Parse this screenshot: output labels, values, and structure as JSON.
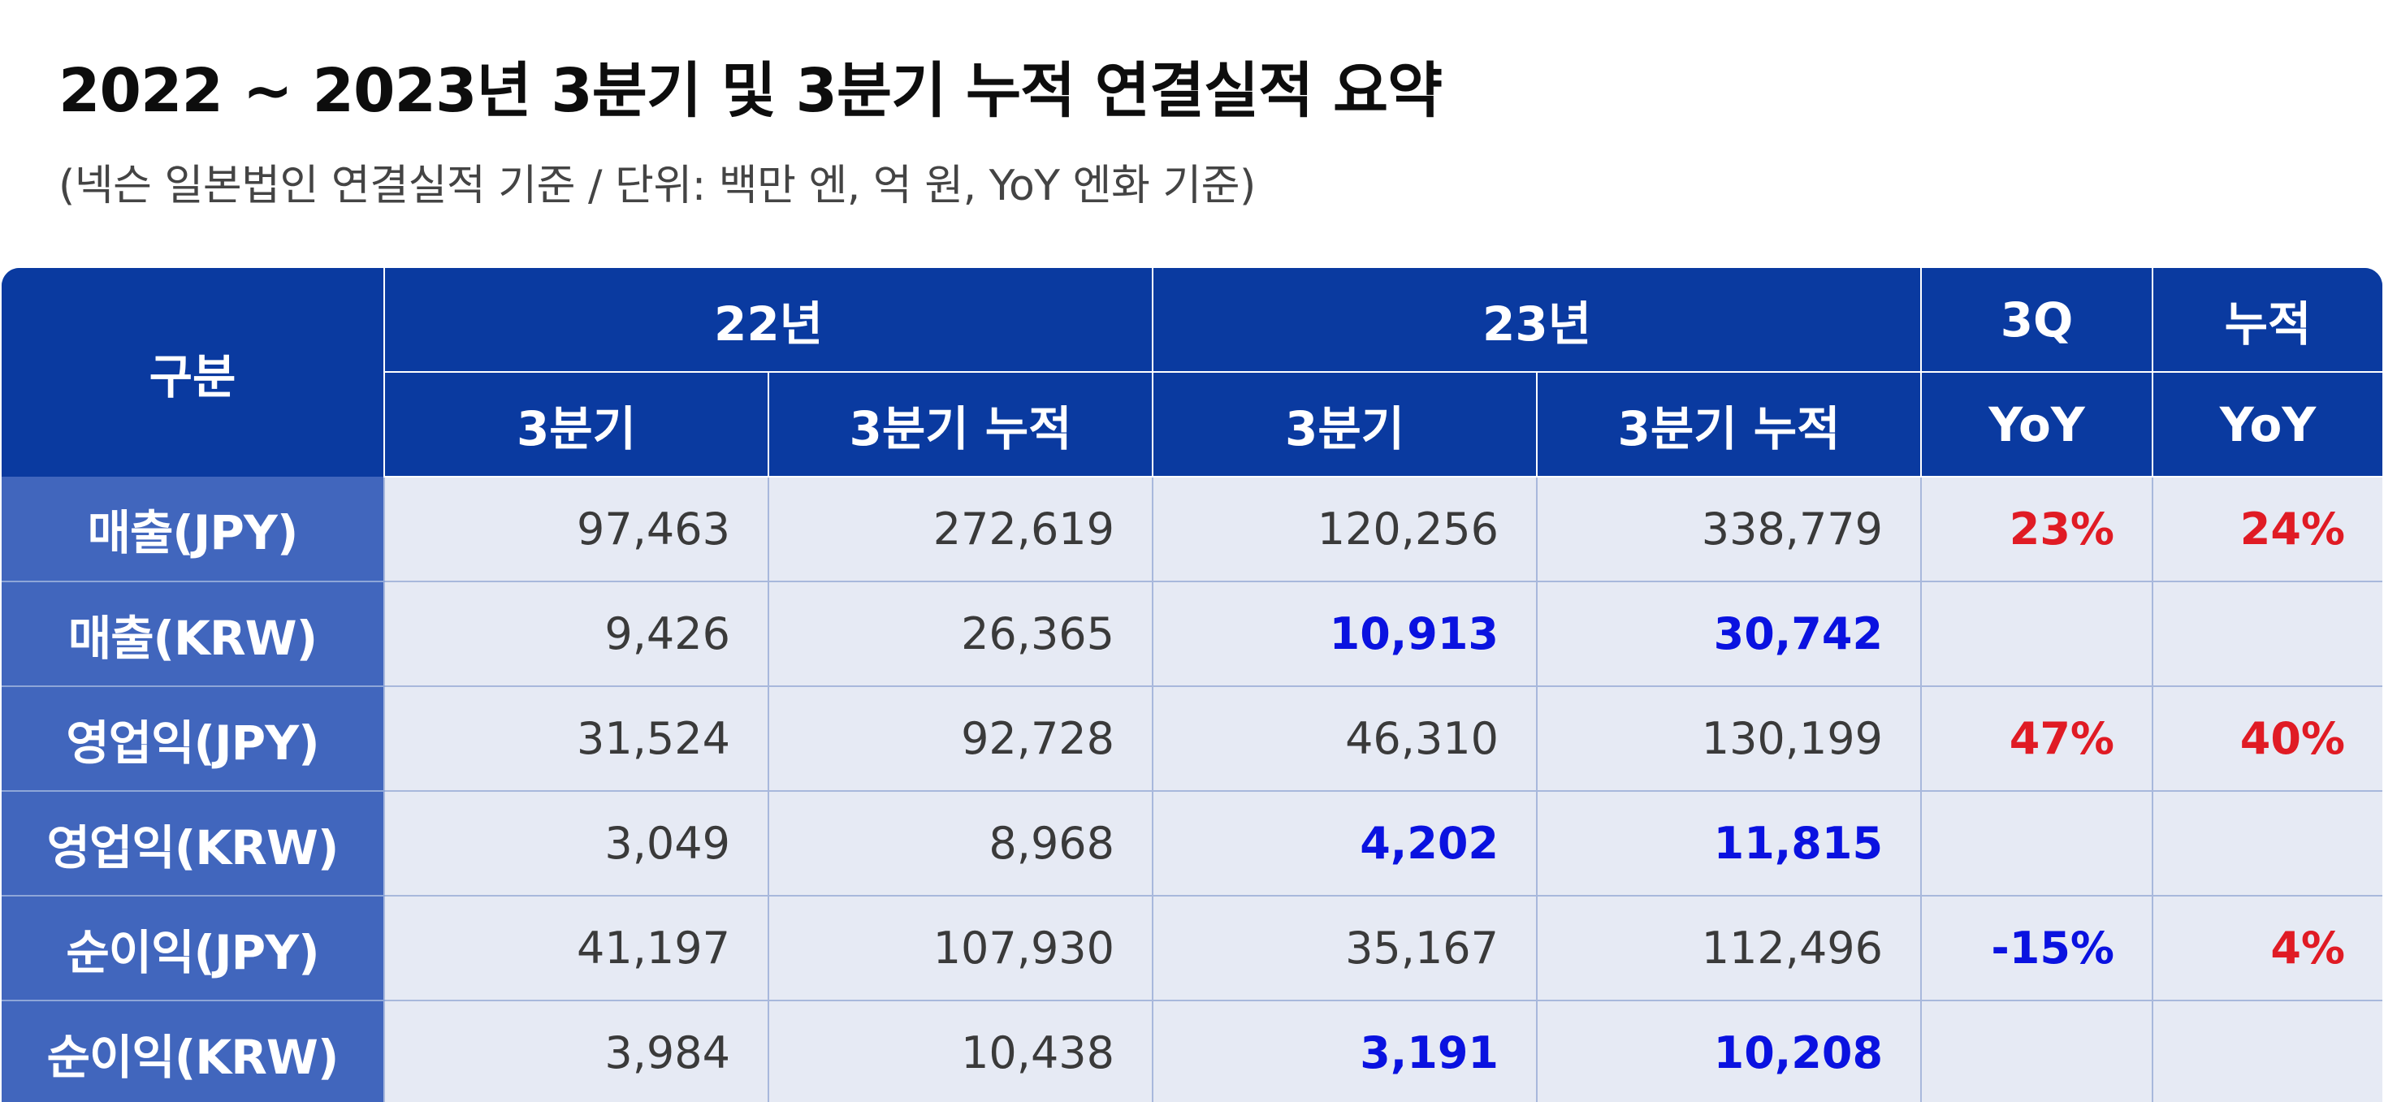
{
  "title": "2022 ~ 2023년 3분기 및 3분기 누적 연결실적 요약",
  "subtitle": "(넥슨 일본법인 연결실적 기준 / 단위: 백만 엔, 억 원, YoY 엔화 기준)",
  "colors": {
    "header_bg": "#0a3aa0",
    "row_header_bg": "#4166bd",
    "cell_bg": "#e6eaf4",
    "krw_text": "#0a12e0",
    "positive_yoy": "#e01b24",
    "negative_yoy": "#0a12e0"
  },
  "header": {
    "corner": "구분",
    "group_22": "22년",
    "group_23": "23년",
    "group_3q": "3Q",
    "group_cum": "누적",
    "sub_q3_22": "3분기",
    "sub_cum_22": "3분기 누적",
    "sub_q3_23": "3분기",
    "sub_cum_23": "3분기 누적",
    "sub_yoy_3q": "YoY",
    "sub_yoy_cum": "YoY"
  },
  "rows": [
    {
      "label": "매출(JPY)",
      "q3_22": "97,463",
      "cum_22": "272,619",
      "q3_23": "120,256",
      "cum_23": "338,779",
      "yoy_3q": "23%",
      "yoy_cum": "24%"
    },
    {
      "label": "매출(KRW)",
      "q3_22": "9,426",
      "cum_22": "26,365",
      "q3_23": "10,913",
      "cum_23": "30,742",
      "yoy_3q": "",
      "yoy_cum": ""
    },
    {
      "label": "영업익(JPY)",
      "q3_22": "31,524",
      "cum_22": "92,728",
      "q3_23": "46,310",
      "cum_23": "130,199",
      "yoy_3q": "47%",
      "yoy_cum": "40%"
    },
    {
      "label": "영업익(KRW)",
      "q3_22": "3,049",
      "cum_22": "8,968",
      "q3_23": "4,202",
      "cum_23": "11,815",
      "yoy_3q": "",
      "yoy_cum": ""
    },
    {
      "label": "순이익(JPY)",
      "q3_22": "41,197",
      "cum_22": "107,930",
      "q3_23": "35,167",
      "cum_23": "112,496",
      "yoy_3q": "-15%",
      "yoy_cum": "4%"
    },
    {
      "label": "순이익(KRW)",
      "q3_22": "3,984",
      "cum_22": "10,438",
      "q3_23": "3,191",
      "cum_23": "10,208",
      "yoy_3q": "",
      "yoy_cum": ""
    }
  ]
}
